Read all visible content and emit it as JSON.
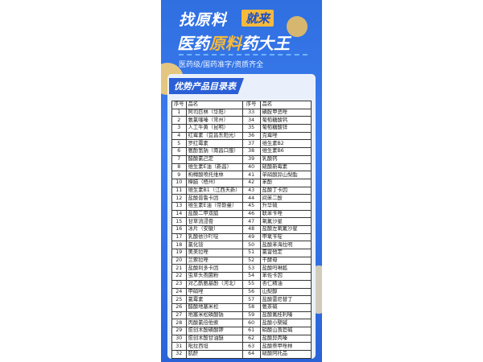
{
  "header": {
    "line1": "找原料",
    "line1_badge": "就来",
    "line2_a": "医药",
    "line2_hl": "原料",
    "line2_b": "药大王",
    "subtitle": "医药级/国药准字/资质齐全"
  },
  "section_title": "优势产品目录表",
  "table": {
    "headers": [
      "序号",
      "品名",
      "序号",
      "品名"
    ],
    "rows": [
      [
        "1",
        "阿司匹林（华阳）",
        "33",
        "磺胺甲恶唑"
      ],
      [
        "2",
        "氨氯噻嗪（常州）",
        "34",
        "葡萄糖酸钙"
      ],
      [
        "3",
        "人工牛黄（昆明）",
        "35",
        "葡萄糖酸锌"
      ],
      [
        "4",
        "红霉素（宜昌东阳光）",
        "36",
        "克霉唑"
      ],
      [
        "5",
        "罗红霉素",
        "37",
        "维生素B2"
      ],
      [
        "6",
        "氨酚氢钠（南昌口服）",
        "38",
        "维生素B6"
      ],
      [
        "7",
        "醋酸氯己定",
        "39",
        "乳酸钙"
      ],
      [
        "8",
        "维生素E油（新昌）",
        "40",
        "硫酸新霉素"
      ],
      [
        "9",
        "枸橼酸喷托维林",
        "41",
        "单硝酸异山梨酯"
      ],
      [
        "10",
        "樟脑（梧州）",
        "42",
        "苯酚"
      ],
      [
        "11",
        "维生素B1（江西天新）",
        "43",
        "盐酸丁卡因"
      ],
      [
        "12",
        "盐酸普鲁卡因",
        "44",
        "间苯二酚"
      ],
      [
        "13",
        "维生素E油（帝斯曼）",
        "45",
        "升华硫"
      ],
      [
        "14",
        "盐酸二甲双胍",
        "46",
        "联苯苄唑"
      ],
      [
        "15",
        "甘草流浸膏",
        "47",
        "氧氟沙星"
      ],
      [
        "16",
        "冰片（安徽）",
        "48",
        "盐酸左氧氟沙星"
      ],
      [
        "17",
        "乳酸依沙吖啶",
        "49",
        "甲氧苄啶"
      ],
      [
        "18",
        "氯化铵",
        "50",
        "盐酸苯海拉明"
      ],
      [
        "19",
        "奥美拉唑",
        "51",
        "氯雷他定"
      ],
      [
        "20",
        "兰索拉唑",
        "52",
        "干酵母"
      ],
      [
        "21",
        "盐酸利多卡因",
        "53",
        "盐酸吗啉胍"
      ],
      [
        "22",
        "虫草头孢菌粉",
        "54",
        "苯佐卡因"
      ],
      [
        "23",
        "对乙酰氨基酚（河北）",
        "55",
        "杏仁精油"
      ],
      [
        "24",
        "甲硝唑",
        "56",
        "山梨醇"
      ],
      [
        "25",
        "氯霉素",
        "57",
        "盐酸雷尼替丁"
      ],
      [
        "26",
        "醋酸地塞米松",
        "58",
        "氨茶碱"
      ],
      [
        "27",
        "地塞米松磷酸钠",
        "59",
        "盐酸氟桂利嗪"
      ],
      [
        "28",
        "丙酸氯倍他索",
        "60",
        "盐酸小檗碱"
      ],
      [
        "29",
        "愈创木酚磺酸钾",
        "61",
        "硝酸山莨菪碱"
      ],
      [
        "30",
        "愈创木酚甘油醚",
        "62",
        "盐酸异丙嗪"
      ],
      [
        "31",
        "吡拉西坦",
        "63",
        "盐酸萘甲唑林"
      ],
      [
        "32",
        "肌酐",
        "64",
        "硫酸阿托品"
      ]
    ]
  }
}
